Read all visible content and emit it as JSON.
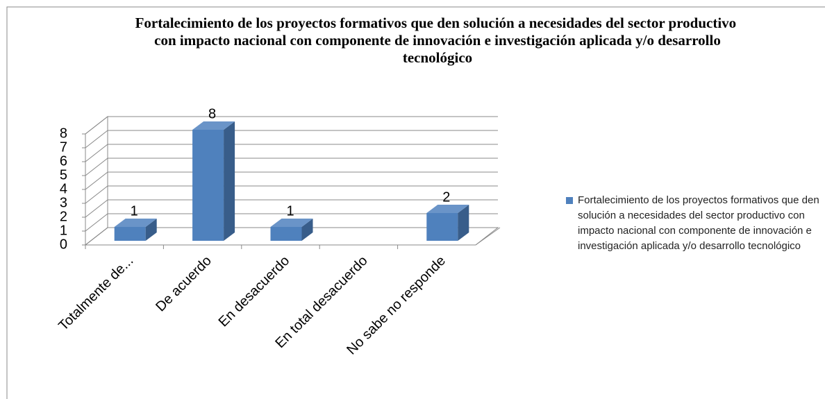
{
  "chart_data": {
    "type": "bar3d",
    "title": "Fortalecimiento de los proyectos formativos que den solución a necesidades del sector productivo  con impacto nacional con componente de innovación e investigación aplicada y/o desarrollo tecnológico",
    "categories": [
      "Totalmente de...",
      "De acuerdo",
      "En desacuerdo",
      "En total desacuerdo",
      "No sabe no responde"
    ],
    "series": [
      {
        "name": "Fortalecimiento de los proyectos formativos que den solución a necesidades del  sector productivo  con impacto nacional con componente de innovación e investigación aplicada y/o desarrollo tecnológico",
        "color": "#4f81bd",
        "values": [
          1,
          8,
          1,
          null,
          2
        ]
      }
    ],
    "ylim": [
      0,
      8
    ],
    "yticks": [
      0,
      1,
      2,
      3,
      4,
      5,
      6,
      7,
      8
    ],
    "grid": true,
    "legend": "right"
  }
}
